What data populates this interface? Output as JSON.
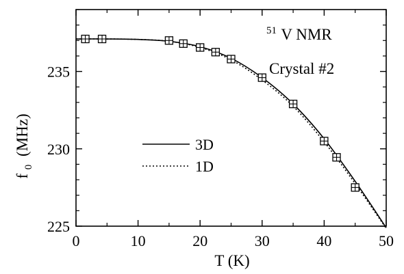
{
  "chart_data": {
    "type": "scatter",
    "xlabel": "T (K)",
    "ylabel_main": "f",
    "ylabel_sub": "0",
    "ylabel_unit": "(MHz)",
    "xlim": [
      0,
      50
    ],
    "ylim": [
      225,
      239
    ],
    "x_ticks": [
      0,
      10,
      20,
      30,
      40,
      50
    ],
    "x_tick_labels": [
      "0",
      "10",
      "20",
      "30",
      "40",
      "50"
    ],
    "y_ticks": [
      225,
      230,
      235
    ],
    "y_tick_labels": [
      "225",
      "230",
      "235"
    ],
    "grid": false,
    "annotation_sup": "51",
    "annotation_main": "V NMR",
    "annotation_sub": "Crystal #2",
    "legend": {
      "position": "center-left",
      "entries": [
        "3D",
        "1D"
      ]
    },
    "series": [
      {
        "type": "scatter",
        "marker": "boxed-cross",
        "points": [
          {
            "x": 1.5,
            "y": 237.1
          },
          {
            "x": 4.2,
            "y": 237.1
          },
          {
            "x": 15.0,
            "y": 237.0
          },
          {
            "x": 17.3,
            "y": 236.8
          },
          {
            "x": 20.0,
            "y": 236.55
          },
          {
            "x": 22.5,
            "y": 236.25
          },
          {
            "x": 25.0,
            "y": 235.8
          },
          {
            "x": 30.0,
            "y": 234.6
          },
          {
            "x": 35.0,
            "y": 232.9
          },
          {
            "x": 40.0,
            "y": 230.5
          },
          {
            "x": 42.0,
            "y": 229.45
          },
          {
            "x": 45.0,
            "y": 227.5
          }
        ]
      },
      {
        "name": "3D",
        "type": "line",
        "style": "solid",
        "points": [
          {
            "x": 0,
            "y": 237.1
          },
          {
            "x": 5,
            "y": 237.1
          },
          {
            "x": 10,
            "y": 237.07
          },
          {
            "x": 15,
            "y": 236.95
          },
          {
            "x": 20,
            "y": 236.6
          },
          {
            "x": 25,
            "y": 235.85
          },
          {
            "x": 30,
            "y": 234.6
          },
          {
            "x": 35,
            "y": 232.9
          },
          {
            "x": 40,
            "y": 230.65
          },
          {
            "x": 45,
            "y": 227.9
          },
          {
            "x": 50,
            "y": 224.9
          }
        ]
      },
      {
        "name": "1D",
        "type": "line",
        "style": "dotted",
        "points": [
          {
            "x": 0,
            "y": 237.1
          },
          {
            "x": 5,
            "y": 237.1
          },
          {
            "x": 10,
            "y": 237.07
          },
          {
            "x": 15,
            "y": 236.95
          },
          {
            "x": 20,
            "y": 236.55
          },
          {
            "x": 25,
            "y": 235.75
          },
          {
            "x": 30,
            "y": 234.45
          },
          {
            "x": 35,
            "y": 232.75
          },
          {
            "x": 40,
            "y": 230.45
          },
          {
            "x": 45,
            "y": 227.75
          },
          {
            "x": 50,
            "y": 224.85
          }
        ]
      }
    ]
  }
}
